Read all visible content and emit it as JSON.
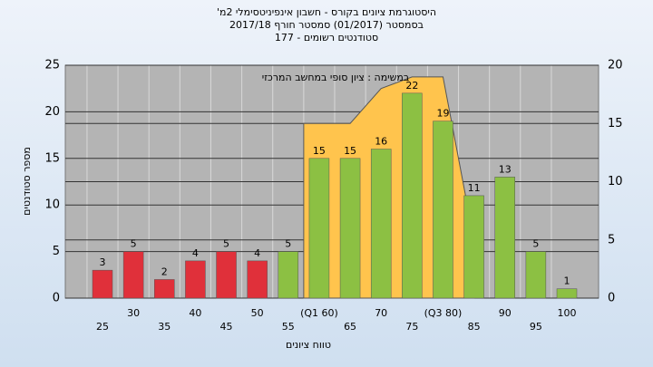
{
  "chart_data": {
    "type": "bar",
    "title": "היסטוגרמת ציונים בקורס - חשבון אינפיניטסימלי 2מ'",
    "subtitle": "בסמסטר  (01/2017)  סמסטר חורף 2017/18",
    "subtitle2": "סטודנטים רשומים - 177",
    "annotation": "במשימה : ציון סופי במחשב המרכזי",
    "y_label": "מספר סטודנטים",
    "x_label": "טווח ציונים",
    "categories": [
      "25",
      "30",
      "35",
      "40",
      "45",
      "50",
      "55",
      "(Q1 60)",
      "65",
      "70",
      "75",
      "(Q3 80)",
      "85",
      "90",
      "95",
      "100"
    ],
    "series": [
      {
        "values": [
          3,
          5,
          2,
          4,
          5,
          4,
          5,
          15,
          15,
          16,
          22,
          19,
          11,
          13,
          5,
          1
        ],
        "colors": [
          "#e0303a",
          "#e0303a",
          "#e0303a",
          "#e0303a",
          "#e0303a",
          "#e0303a",
          "#8cc043",
          "#8cc043",
          "#8cc043",
          "#8cc043",
          "#8cc043",
          "#8cc043",
          "#8cc043",
          "#8cc043",
          "#8cc043",
          "#8cc043"
        ]
      },
      {
        "type": "area",
        "axis": "y2",
        "color": "#ffc44d",
        "values": [
          null,
          null,
          null,
          null,
          null,
          null,
          null,
          15,
          15,
          18,
          19,
          19,
          5,
          null,
          null,
          null
        ]
      }
    ],
    "ylim": [
      0,
      25
    ],
    "yticks": [
      0,
      5,
      10,
      15,
      20,
      25
    ],
    "y2lim": [
      0,
      20
    ],
    "y2ticks": [
      0,
      5,
      10,
      15,
      20
    ],
    "grid": true
  }
}
